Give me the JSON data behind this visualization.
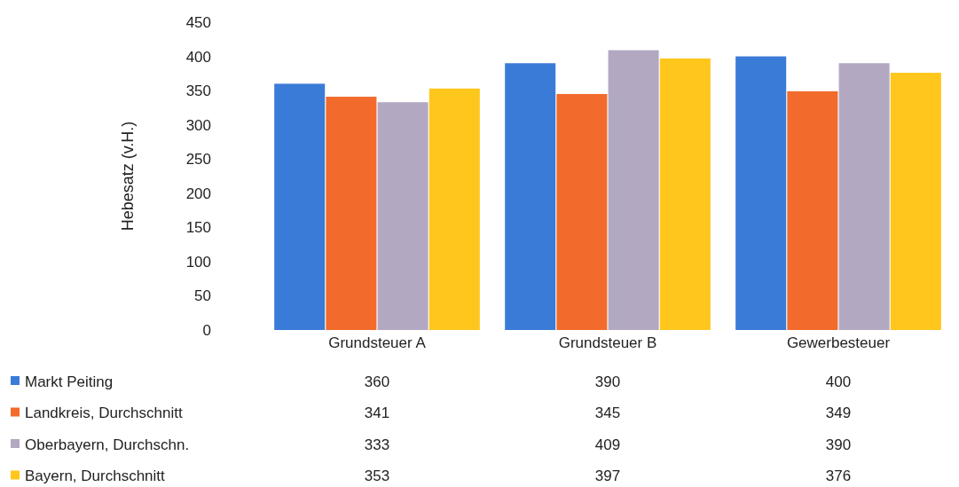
{
  "chart_data": {
    "type": "bar",
    "ylabel": "Hebesatz (v.H.)",
    "categories": [
      "Grundsteuer A",
      "Grundsteuer B",
      "Gewerbesteuer"
    ],
    "series": [
      {
        "name": "Markt Peiting",
        "color": "#3b7bd8",
        "values": [
          360,
          390,
          400
        ]
      },
      {
        "name": "Landkreis, Durchschnitt",
        "color": "#f26b2c",
        "values": [
          341,
          345,
          349
        ]
      },
      {
        "name": "Oberbayern, Durchschn.",
        "color": "#b3a8c2",
        "values": [
          333,
          409,
          390
        ]
      },
      {
        "name": "Bayern, Durchschnitt",
        "color": "#ffc61c",
        "values": [
          353,
          397,
          376
        ]
      }
    ],
    "ylim": [
      0,
      450
    ],
    "yticks": [
      0,
      50,
      100,
      150,
      200,
      250,
      300,
      350,
      400,
      450
    ],
    "grid": false,
    "legend": "bottom left",
    "data_labels": true
  }
}
